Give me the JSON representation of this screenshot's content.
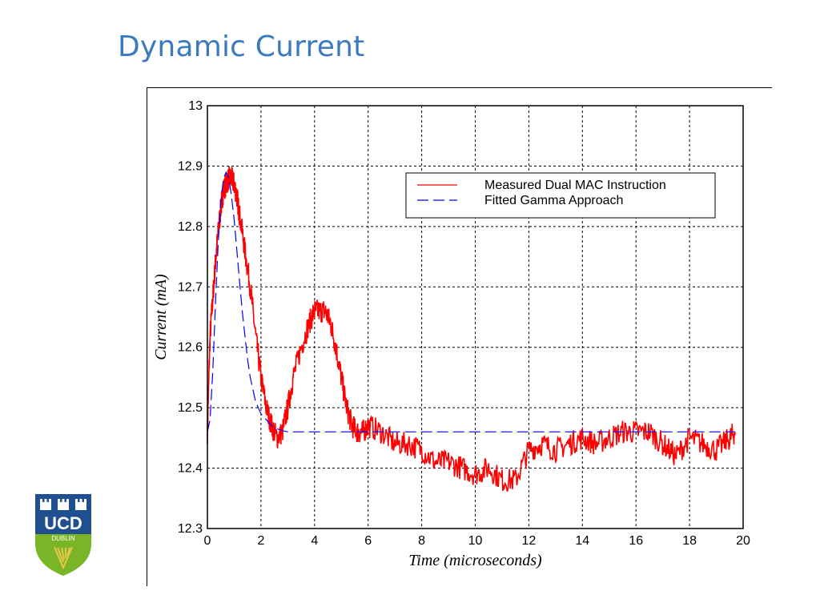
{
  "slide": {
    "title": "Dynamic Current"
  },
  "logo": {
    "text_main": "UCD",
    "text_sub": "DUBLIN",
    "colors": {
      "shield_top": "#1f4f8f",
      "shield_bottom": "#7ab528",
      "harp": "#e8c84a"
    }
  },
  "chart_data": {
    "type": "line",
    "title": "",
    "xlabel": "Time (microseconds)",
    "ylabel": "Current (mA)",
    "xlim": [
      0,
      20
    ],
    "ylim": [
      12.3,
      13
    ],
    "xticks": [
      "0",
      "2",
      "4",
      "6",
      "8",
      "10",
      "12",
      "14",
      "16",
      "18",
      "20"
    ],
    "yticks": [
      "12.3",
      "12.4",
      "12.5",
      "12.6",
      "12.7",
      "12.8",
      "12.9",
      "13"
    ],
    "grid": true,
    "grid_style": "dotted",
    "legend_position": "top-right",
    "series": [
      {
        "name": "Measured Dual MAC Instruction",
        "color": "#ff0000",
        "style": "solid",
        "noise_amplitude": 0.02,
        "x": [
          0,
          0.1,
          0.2,
          0.3,
          0.4,
          0.5,
          0.6,
          0.7,
          0.8,
          0.9,
          1.0,
          1.1,
          1.2,
          1.4,
          1.6,
          1.8,
          2.0,
          2.2,
          2.4,
          2.6,
          2.8,
          3.0,
          3.2,
          3.5,
          3.8,
          4.0,
          4.2,
          4.4,
          4.6,
          4.8,
          5.0,
          5.2,
          5.4,
          5.6,
          5.8,
          6.0,
          6.5,
          7.0,
          7.5,
          8.0,
          8.5,
          9.0,
          9.5,
          10.0,
          10.5,
          11.0,
          11.5,
          12.0,
          12.5,
          13.0,
          13.5,
          14.0,
          14.5,
          15.0,
          15.5,
          16.0,
          16.5,
          17.0,
          17.5,
          18.0,
          18.5,
          19.0,
          19.5,
          19.7
        ],
        "y": [
          12.46,
          12.62,
          12.68,
          12.74,
          12.79,
          12.83,
          12.86,
          12.87,
          12.88,
          12.88,
          12.87,
          12.85,
          12.82,
          12.76,
          12.7,
          12.62,
          12.55,
          12.5,
          12.47,
          12.45,
          12.46,
          12.5,
          12.55,
          12.6,
          12.64,
          12.66,
          12.66,
          12.66,
          12.64,
          12.6,
          12.55,
          12.5,
          12.47,
          12.46,
          12.46,
          12.47,
          12.46,
          12.44,
          12.44,
          12.43,
          12.41,
          12.41,
          12.4,
          12.39,
          12.4,
          12.38,
          12.38,
          12.43,
          12.44,
          12.43,
          12.44,
          12.45,
          12.44,
          12.45,
          12.46,
          12.46,
          12.46,
          12.44,
          12.42,
          12.45,
          12.44,
          12.43,
          12.45,
          12.46
        ]
      },
      {
        "name": "Fitted Gamma Approach",
        "color": "#0000ff",
        "style": "dashed",
        "x": [
          0,
          0.1,
          0.2,
          0.3,
          0.4,
          0.5,
          0.6,
          0.7,
          0.8,
          0.9,
          1.0,
          1.1,
          1.2,
          1.3,
          1.4,
          1.5,
          1.6,
          1.7,
          1.8,
          2.0,
          2.2,
          2.4,
          2.6,
          2.8,
          3.0,
          3.3,
          3.6,
          4.0,
          5.0,
          6.0,
          8.0,
          10.0,
          12.0,
          14.0,
          16.0,
          18.0,
          19.7
        ],
        "y": [
          12.46,
          12.48,
          12.56,
          12.67,
          12.77,
          12.84,
          12.88,
          12.89,
          12.88,
          12.85,
          12.81,
          12.76,
          12.71,
          12.66,
          12.62,
          12.58,
          12.55,
          12.53,
          12.51,
          12.49,
          12.48,
          12.47,
          12.465,
          12.462,
          12.46,
          12.46,
          12.46,
          12.46,
          12.46,
          12.46,
          12.46,
          12.46,
          12.46,
          12.46,
          12.46,
          12.46,
          12.46
        ]
      }
    ]
  }
}
